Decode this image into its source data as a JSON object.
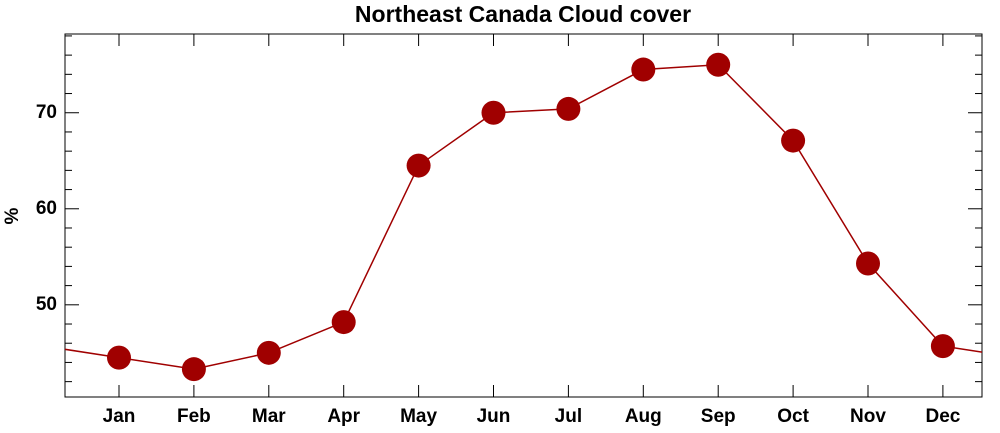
{
  "chart_data": {
    "type": "line",
    "title": "Northeast Canada Cloud cover",
    "y_label": "%",
    "categories": [
      "Jan",
      "Feb",
      "Mar",
      "Apr",
      "May",
      "Jun",
      "Jul",
      "Aug",
      "Sep",
      "Oct",
      "Nov",
      "Dec"
    ],
    "values": [
      44.5,
      43.3,
      45.0,
      48.2,
      64.5,
      70.0,
      70.4,
      74.5,
      75.0,
      67.1,
      54.3,
      45.7
    ],
    "color": "#a00000",
    "ylim": [
      40.4,
      78.2
    ],
    "yticks": [
      50,
      60,
      70
    ],
    "yticks_minor": [
      42,
      44,
      46,
      48,
      52,
      54,
      56,
      58,
      62,
      64,
      66,
      68,
      72,
      74,
      76,
      78
    ]
  }
}
